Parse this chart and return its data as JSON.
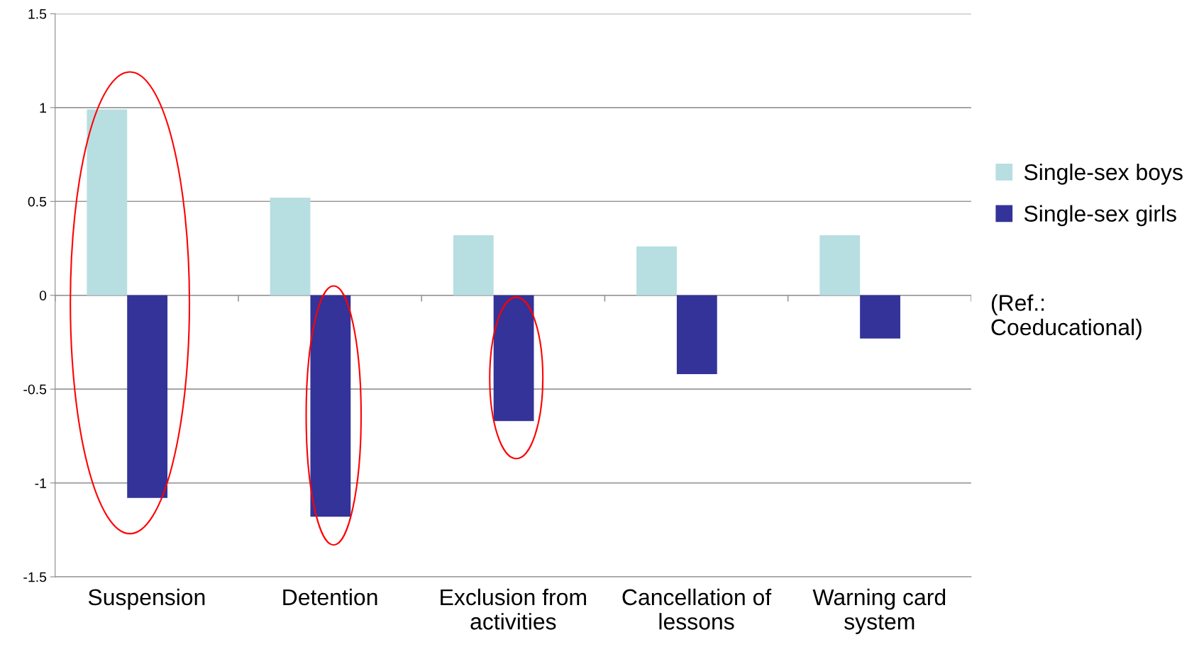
{
  "chart_data": {
    "type": "bar",
    "categories": [
      "Suspension",
      "Detention",
      "Exclusion from\nactivities",
      "Cancellation of\nlessons",
      "Warning card\nsystem"
    ],
    "series": [
      {
        "name": "Single-sex boys",
        "color": "#b7dee1",
        "values": [
          0.99,
          0.52,
          0.32,
          0.26,
          0.32
        ]
      },
      {
        "name": "Single-sex girls",
        "color": "#333399",
        "values": [
          -1.08,
          -1.18,
          -0.67,
          -0.42,
          -0.23
        ]
      }
    ],
    "ylim": [
      -1.5,
      1.5
    ],
    "yticks": [
      {
        "value": -1.5,
        "label": "-1.5"
      },
      {
        "value": -1,
        "label": "-1"
      },
      {
        "value": -0.5,
        "label": "-0.5"
      },
      0,
      0.5,
      1,
      1.5
    ],
    "grid": "y",
    "legend": "right",
    "annotations": [
      "(Ref.:\nCoeducational)"
    ]
  }
}
